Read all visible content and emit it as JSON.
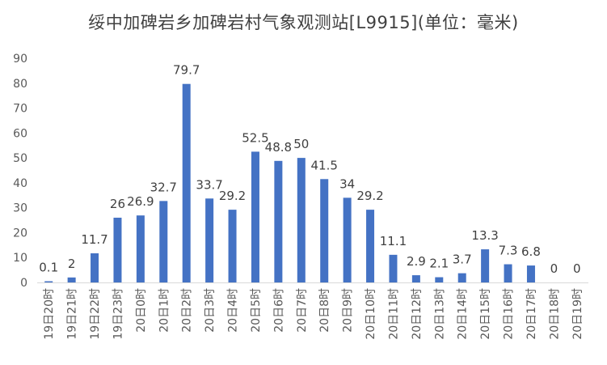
{
  "chart_data": {
    "type": "bar",
    "title": "绥中加碑岩乡加碑岩村气象观测站[L9915](单位：毫米)",
    "xlabel": "",
    "ylabel": "",
    "ylim": [
      0,
      90
    ],
    "yticks": [
      0,
      10,
      20,
      30,
      40,
      50,
      60,
      70,
      80,
      90
    ],
    "grid": false,
    "color": "#4472C4",
    "categories": [
      "19日20时",
      "19日21时",
      "19日22时",
      "19日23时",
      "20日0时",
      "20日1时",
      "20日2时",
      "20日3时",
      "20日4时",
      "20日5时",
      "20日6时",
      "20日7时",
      "20日8时",
      "20日9时",
      "20日10时",
      "20日11时",
      "20日12时",
      "20日13时",
      "20日14时",
      "20日15时",
      "20日16时",
      "20日17时",
      "20日18时",
      "20日19时"
    ],
    "values": [
      0.1,
      2,
      11.7,
      26,
      26.9,
      32.7,
      79.7,
      33.7,
      29.2,
      52.5,
      48.8,
      50,
      41.5,
      34,
      29.2,
      11.1,
      2.9,
      2.1,
      3.7,
      13.3,
      7.3,
      6.8,
      0,
      0
    ]
  }
}
